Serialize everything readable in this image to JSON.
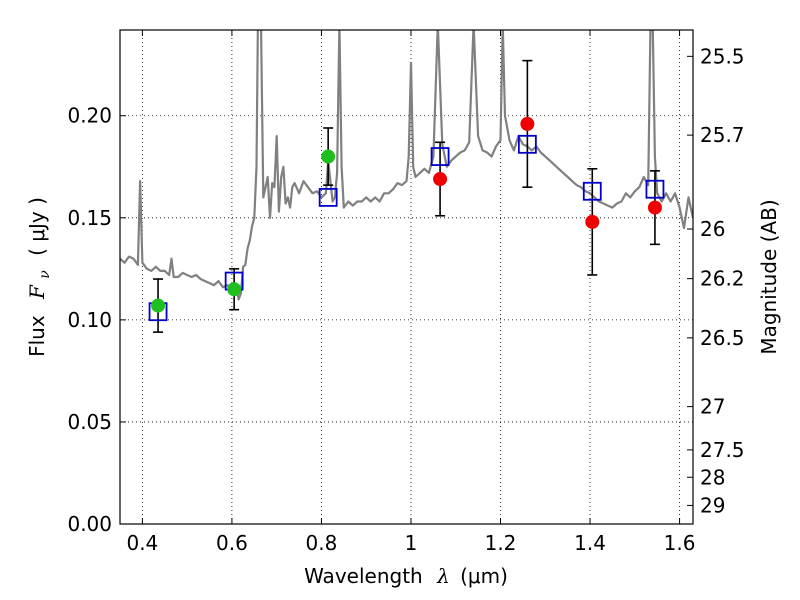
{
  "chart_data": {
    "type": "scatter",
    "title": "",
    "xlabel_text": "Wavelength",
    "xlabel_symbol": "λ",
    "xlabel_unit": "(μm)",
    "ylabel_text": "Flux",
    "ylabel_symbol": "F",
    "ylabel_sub": "ν",
    "ylabel_unit": "( μJy )",
    "y2label": "Magnitude (AB)",
    "xlim": [
      0.35,
      1.63
    ],
    "ylim": [
      0.0,
      0.242
    ],
    "x_ticks": [
      0.4,
      0.6,
      0.8,
      1.0,
      1.2,
      1.4,
      1.6
    ],
    "x_tick_labels": [
      "0.4",
      "0.6",
      "0.8",
      "1",
      "1.2",
      "1.4",
      "1.6"
    ],
    "y_ticks": [
      0.0,
      0.05,
      0.1,
      0.15,
      0.2
    ],
    "y_tick_labels": [
      "0.00",
      "0.05",
      "0.10",
      "0.15",
      "0.20"
    ],
    "y2_ticks": [
      {
        "label": "25.5",
        "flux": 0.2291
      },
      {
        "label": "25.7",
        "flux": 0.1905
      },
      {
        "label": "26",
        "flux": 0.1445
      },
      {
        "label": "26.2",
        "flux": 0.1202
      },
      {
        "label": "26.5",
        "flux": 0.0912
      },
      {
        "label": "27",
        "flux": 0.0575
      },
      {
        "label": "27.5",
        "flux": 0.0363
      },
      {
        "label": "28",
        "flux": 0.0229
      },
      {
        "label": "29",
        "flux": 0.0091
      }
    ],
    "grid": true,
    "colors": {
      "spectrum": "#808080",
      "green": "#1fbf1f",
      "red": "#ee0000",
      "model_box": "#0000cc",
      "errorbar": "#000000"
    },
    "spectrum": [
      [
        0.35,
        0.13
      ],
      [
        0.36,
        0.128
      ],
      [
        0.37,
        0.131
      ],
      [
        0.38,
        0.13
      ],
      [
        0.39,
        0.127
      ],
      [
        0.395,
        0.168
      ],
      [
        0.4,
        0.128
      ],
      [
        0.41,
        0.125
      ],
      [
        0.42,
        0.124
      ],
      [
        0.43,
        0.126
      ],
      [
        0.44,
        0.124
      ],
      [
        0.45,
        0.124
      ],
      [
        0.46,
        0.122
      ],
      [
        0.465,
        0.13
      ],
      [
        0.47,
        0.121
      ],
      [
        0.48,
        0.121
      ],
      [
        0.49,
        0.123
      ],
      [
        0.5,
        0.122
      ],
      [
        0.51,
        0.121
      ],
      [
        0.52,
        0.122
      ],
      [
        0.53,
        0.12
      ],
      [
        0.54,
        0.119
      ],
      [
        0.55,
        0.118
      ],
      [
        0.56,
        0.117
      ],
      [
        0.57,
        0.119
      ],
      [
        0.58,
        0.116
      ],
      [
        0.59,
        0.117
      ],
      [
        0.6,
        0.116
      ],
      [
        0.61,
        0.117
      ],
      [
        0.615,
        0.11
      ],
      [
        0.62,
        0.113
      ],
      [
        0.625,
        0.126
      ],
      [
        0.63,
        0.127
      ],
      [
        0.635,
        0.135
      ],
      [
        0.64,
        0.139
      ],
      [
        0.645,
        0.146
      ],
      [
        0.65,
        0.15
      ],
      [
        0.655,
        0.175
      ],
      [
        0.658,
        0.245
      ],
      [
        0.665,
        0.245
      ],
      [
        0.67,
        0.16
      ],
      [
        0.68,
        0.17
      ],
      [
        0.685,
        0.15
      ],
      [
        0.69,
        0.167
      ],
      [
        0.695,
        0.165
      ],
      [
        0.7,
        0.19
      ],
      [
        0.705,
        0.153
      ],
      [
        0.71,
        0.17
      ],
      [
        0.715,
        0.175
      ],
      [
        0.72,
        0.157
      ],
      [
        0.725,
        0.16
      ],
      [
        0.73,
        0.155
      ],
      [
        0.735,
        0.165
      ],
      [
        0.74,
        0.167
      ],
      [
        0.75,
        0.162
      ],
      [
        0.76,
        0.168
      ],
      [
        0.77,
        0.165
      ],
      [
        0.78,
        0.162
      ],
      [
        0.79,
        0.163
      ],
      [
        0.8,
        0.16
      ],
      [
        0.81,
        0.162
      ],
      [
        0.815,
        0.178
      ],
      [
        0.82,
        0.168
      ],
      [
        0.825,
        0.158
      ],
      [
        0.83,
        0.16
      ],
      [
        0.835,
        0.172
      ],
      [
        0.84,
        0.245
      ],
      [
        0.845,
        0.175
      ],
      [
        0.85,
        0.155
      ],
      [
        0.86,
        0.158
      ],
      [
        0.87,
        0.156
      ],
      [
        0.88,
        0.158
      ],
      [
        0.89,
        0.158
      ],
      [
        0.9,
        0.16
      ],
      [
        0.91,
        0.158
      ],
      [
        0.92,
        0.16
      ],
      [
        0.93,
        0.158
      ],
      [
        0.94,
        0.162
      ],
      [
        0.95,
        0.162
      ],
      [
        0.96,
        0.164
      ],
      [
        0.97,
        0.167
      ],
      [
        0.98,
        0.166
      ],
      [
        0.99,
        0.168
      ],
      [
        0.995,
        0.18
      ],
      [
        1.0,
        0.226
      ],
      [
        1.005,
        0.175
      ],
      [
        1.01,
        0.17
      ],
      [
        1.02,
        0.172
      ],
      [
        1.03,
        0.174
      ],
      [
        1.04,
        0.172
      ],
      [
        1.05,
        0.18
      ],
      [
        1.06,
        0.245
      ],
      [
        1.07,
        0.186
      ],
      [
        1.08,
        0.175
      ],
      [
        1.09,
        0.178
      ],
      [
        1.1,
        0.18
      ],
      [
        1.11,
        0.182
      ],
      [
        1.12,
        0.183
      ],
      [
        1.13,
        0.187
      ],
      [
        1.14,
        0.245
      ],
      [
        1.15,
        0.19
      ],
      [
        1.16,
        0.183
      ],
      [
        1.17,
        0.182
      ],
      [
        1.18,
        0.18
      ],
      [
        1.19,
        0.185
      ],
      [
        1.2,
        0.188
      ],
      [
        1.205,
        0.245
      ],
      [
        1.21,
        0.2
      ],
      [
        1.22,
        0.188
      ],
      [
        1.23,
        0.183
      ],
      [
        1.24,
        0.19
      ],
      [
        1.25,
        0.186
      ],
      [
        1.26,
        0.185
      ],
      [
        1.27,
        0.183
      ],
      [
        1.28,
        0.185
      ],
      [
        1.29,
        0.182
      ],
      [
        1.3,
        0.18
      ],
      [
        1.31,
        0.178
      ],
      [
        1.32,
        0.176
      ],
      [
        1.33,
        0.174
      ],
      [
        1.34,
        0.172
      ],
      [
        1.35,
        0.17
      ],
      [
        1.36,
        0.168
      ],
      [
        1.37,
        0.166
      ],
      [
        1.38,
        0.165
      ],
      [
        1.39,
        0.163
      ],
      [
        1.4,
        0.162
      ],
      [
        1.41,
        0.16
      ],
      [
        1.42,
        0.158
      ],
      [
        1.43,
        0.157
      ],
      [
        1.44,
        0.156
      ],
      [
        1.45,
        0.155
      ],
      [
        1.46,
        0.157
      ],
      [
        1.47,
        0.158
      ],
      [
        1.48,
        0.162
      ],
      [
        1.49,
        0.16
      ],
      [
        1.5,
        0.163
      ],
      [
        1.51,
        0.165
      ],
      [
        1.52,
        0.17
      ],
      [
        1.53,
        0.166
      ],
      [
        1.535,
        0.245
      ],
      [
        1.54,
        0.245
      ],
      [
        1.545,
        0.18
      ],
      [
        1.55,
        0.162
      ],
      [
        1.56,
        0.158
      ],
      [
        1.57,
        0.162
      ],
      [
        1.58,
        0.158
      ],
      [
        1.59,
        0.162
      ],
      [
        1.6,
        0.155
      ],
      [
        1.61,
        0.145
      ],
      [
        1.62,
        0.16
      ],
      [
        1.63,
        0.15
      ]
    ],
    "observed": [
      {
        "x": 0.435,
        "y": 0.107,
        "err": 0.013,
        "color": "green"
      },
      {
        "x": 0.605,
        "y": 0.115,
        "err": 0.01,
        "color": "green"
      },
      {
        "x": 0.815,
        "y": 0.18,
        "err": 0.014,
        "color": "green"
      },
      {
        "x": 1.065,
        "y": 0.169,
        "err": 0.018,
        "color": "red"
      },
      {
        "x": 1.26,
        "y": 0.196,
        "err": 0.031,
        "color": "red"
      },
      {
        "x": 1.405,
        "y": 0.148,
        "err": 0.026,
        "color": "red"
      },
      {
        "x": 1.545,
        "y": 0.155,
        "err": 0.018,
        "color": "red"
      }
    ],
    "model": [
      {
        "x": 0.435,
        "y": 0.104
      },
      {
        "x": 0.605,
        "y": 0.119
      },
      {
        "x": 0.815,
        "y": 0.16
      },
      {
        "x": 1.065,
        "y": 0.18
      },
      {
        "x": 1.26,
        "y": 0.186
      },
      {
        "x": 1.405,
        "y": 0.163
      },
      {
        "x": 1.545,
        "y": 0.164
      }
    ]
  }
}
